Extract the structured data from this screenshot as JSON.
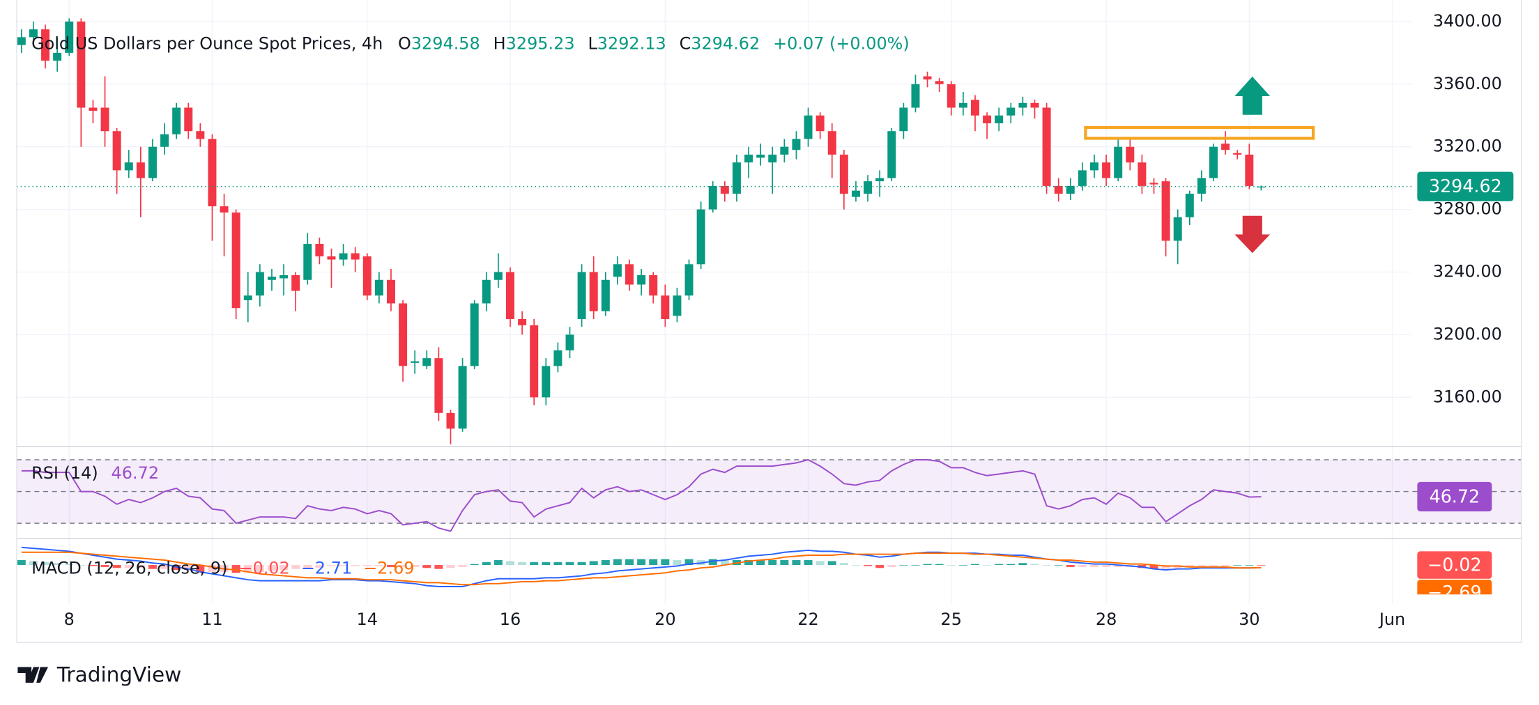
{
  "chart_data": [
    {
      "type": "candlestick",
      "title": "Gold US Dollars per Ounce Spot Prices, 4h",
      "ohlc_labels": [
        "O",
        "H",
        "L",
        "C"
      ],
      "change": "+0.07 (+0.00%)",
      "open": [
        3385,
        3390,
        3395,
        3375,
        3380,
        3400,
        3345,
        3345,
        3330,
        3305,
        3310,
        3300,
        3320,
        3328,
        3345,
        3330,
        3325,
        3282,
        3278,
        3222,
        3225,
        3235,
        3236,
        3238,
        3235,
        3258,
        3250,
        3248,
        3252,
        3250,
        3225,
        3235,
        3220,
        3182,
        3180,
        3185,
        3150,
        3140,
        3180,
        3220,
        3235,
        3240,
        3210,
        3206,
        3160,
        3180,
        3190,
        3210,
        3240,
        3215,
        3237,
        3245,
        3232,
        3238,
        3225,
        3212,
        3225,
        3245,
        3280,
        3295,
        3290,
        3310,
        3313,
        3310,
        3315,
        3318,
        3325,
        3340,
        3330,
        3315,
        3288,
        3290,
        3298,
        3300,
        3330,
        3345,
        3365,
        3362,
        3360,
        3345,
        3350,
        3340,
        3335,
        3340,
        3345,
        3348,
        3345,
        3295,
        3290,
        3295,
        3305,
        3310,
        3300,
        3320,
        3310,
        3297,
        3298,
        3260,
        3275,
        3290,
        3300,
        3322,
        3316,
        3315,
        3294.58
      ],
      "high": [
        3395,
        3400,
        3398,
        3390,
        3402,
        3402,
        3350,
        3365,
        3332,
        3318,
        3320,
        3325,
        3335,
        3348,
        3348,
        3335,
        3328,
        3290,
        3280,
        3240,
        3245,
        3242,
        3245,
        3240,
        3265,
        3262,
        3255,
        3258,
        3256,
        3252,
        3240,
        3242,
        3222,
        3190,
        3190,
        3192,
        3152,
        3185,
        3222,
        3240,
        3252,
        3243,
        3215,
        3210,
        3185,
        3195,
        3205,
        3245,
        3250,
        3240,
        3250,
        3248,
        3242,
        3240,
        3232,
        3230,
        3248,
        3285,
        3298,
        3298,
        3315,
        3320,
        3322,
        3320,
        3325,
        3330,
        3345,
        3342,
        3335,
        3318,
        3298,
        3302,
        3305,
        3332,
        3348,
        3366,
        3368,
        3364,
        3362,
        3355,
        3353,
        3342,
        3345,
        3348,
        3352,
        3350,
        3348,
        3300,
        3300,
        3310,
        3315,
        3315,
        3325,
        3325,
        3315,
        3300,
        3300,
        3280,
        3292,
        3305,
        3322,
        3330,
        3318,
        3322,
        3295.23
      ],
      "low": [
        3380,
        3385,
        3370,
        3368,
        3378,
        3320,
        3335,
        3320,
        3290,
        3300,
        3275,
        3298,
        3315,
        3325,
        3325,
        3320,
        3260,
        3250,
        3210,
        3208,
        3218,
        3228,
        3225,
        3215,
        3232,
        3245,
        3230,
        3244,
        3240,
        3222,
        3220,
        3215,
        3170,
        3175,
        3178,
        3145,
        3130,
        3138,
        3178,
        3215,
        3230,
        3205,
        3200,
        3155,
        3155,
        3176,
        3185,
        3205,
        3210,
        3212,
        3232,
        3228,
        3225,
        3220,
        3205,
        3208,
        3222,
        3242,
        3278,
        3285,
        3285,
        3300,
        3308,
        3290,
        3310,
        3312,
        3320,
        3325,
        3300,
        3280,
        3285,
        3285,
        3288,
        3298,
        3325,
        3342,
        3358,
        3355,
        3340,
        3340,
        3330,
        3325,
        3330,
        3335,
        3340,
        3338,
        3290,
        3285,
        3286,
        3292,
        3300,
        3295,
        3298,
        3305,
        3290,
        3290,
        3250,
        3245,
        3270,
        3285,
        3298,
        3315,
        3312,
        3293,
        3292.13
      ],
      "close": [
        3390,
        3395,
        3375,
        3380,
        3400,
        3345,
        3343,
        3330,
        3305,
        3310,
        3300,
        3320,
        3328,
        3345,
        3330,
        3325,
        3282,
        3278,
        3217,
        3225,
        3240,
        3237,
        3238,
        3228,
        3258,
        3250,
        3248,
        3252,
        3248,
        3225,
        3235,
        3220,
        3180,
        3183,
        3185,
        3150,
        3140,
        3180,
        3220,
        3235,
        3240,
        3210,
        3206,
        3160,
        3180,
        3190,
        3200,
        3240,
        3215,
        3235,
        3245,
        3232,
        3238,
        3225,
        3210,
        3225,
        3245,
        3280,
        3295,
        3290,
        3310,
        3315,
        3315,
        3315,
        3320,
        3325,
        3340,
        3330,
        3315,
        3290,
        3292,
        3298,
        3300,
        3330,
        3345,
        3360,
        3363,
        3360,
        3345,
        3348,
        3340,
        3335,
        3340,
        3345,
        3348,
        3345,
        3295,
        3290,
        3295,
        3305,
        3310,
        3300,
        3320,
        3310,
        3295,
        3296,
        3260,
        3275,
        3290,
        3300,
        3320,
        3318,
        3315,
        3295,
        3294.62
      ],
      "up_color": "#089981",
      "down_color": "#f23645",
      "xlim": [
        -0.4,
        116.6
      ],
      "xticks": [
        {
          "value": 4,
          "label": "8"
        },
        {
          "value": 16,
          "label": "11"
        },
        {
          "value": 29,
          "label": "14"
        },
        {
          "value": 41,
          "label": "16"
        },
        {
          "value": 54,
          "label": "20"
        },
        {
          "value": 66,
          "label": "22"
        },
        {
          "value": 78,
          "label": "25"
        },
        {
          "value": 91,
          "label": "28"
        },
        {
          "value": 103,
          "label": "30"
        },
        {
          "value": 115,
          "label": "Jun"
        }
      ],
      "ylim": [
        3128.7,
        3403.1
      ],
      "yticks": [
        {
          "value": 3160,
          "label": "3160.00"
        },
        {
          "value": 3200,
          "label": "3200.00"
        },
        {
          "value": 3240,
          "label": "3240.00"
        },
        {
          "value": 3280,
          "label": "3280.00"
        },
        {
          "value": 3320,
          "label": "3320.00"
        },
        {
          "value": 3360,
          "label": "3360.00"
        },
        {
          "value": 3400,
          "label": "3400.00"
        }
      ],
      "grid": true
    },
    {
      "type": "line",
      "title": "RSI (14)",
      "color": "#9c4dcc",
      "levels": [
        70,
        50,
        30
      ],
      "ylim": [
        21,
        76.6
      ],
      "values": [
        63,
        63,
        62,
        62,
        62,
        50,
        50,
        47,
        42,
        45,
        43,
        46,
        50,
        52,
        47,
        46,
        39,
        38,
        30,
        32,
        34,
        34,
        34,
        33,
        41,
        39,
        38,
        40,
        39,
        36,
        38,
        36,
        29,
        30,
        31,
        27,
        25,
        38,
        48,
        50,
        51,
        44,
        43,
        34,
        39,
        41,
        43,
        52,
        46,
        51,
        53,
        50,
        51,
        48,
        45,
        48,
        53,
        61,
        64,
        62,
        66,
        66,
        66,
        66,
        67,
        68,
        70,
        66,
        61,
        55,
        54,
        56,
        57,
        63,
        67,
        70,
        70,
        69,
        65,
        65,
        62,
        60,
        61,
        62,
        63,
        61,
        41,
        39,
        41,
        45,
        46,
        42,
        49,
        46,
        40,
        40,
        31,
        36,
        41,
        45,
        51,
        50,
        49,
        46.5,
        46.72
      ]
    },
    {
      "type": "macd",
      "title": "MACD (12, 26, close, 9)",
      "ylim": [
        -39,
        24
      ],
      "histogram": {
        "label": "−0.02",
        "colors": [
          "#26a69a",
          "#b2dfdb",
          "#ffcdd2",
          "#ff5252"
        ],
        "values": [
          5,
          4,
          3,
          2,
          1,
          0,
          -1,
          -2,
          -3,
          -3,
          -3,
          -4,
          -4,
          -5,
          -5,
          -7,
          -7,
          -7,
          -8,
          -8,
          -7,
          -6,
          -5,
          -4,
          -3,
          -3,
          -1,
          -1,
          -1,
          -1,
          -1,
          -2,
          -2,
          -2,
          -3,
          -4,
          -3,
          -2,
          1,
          3,
          5,
          4,
          3,
          3,
          3,
          3,
          3,
          3,
          4,
          5,
          6,
          6,
          6,
          6,
          6,
          5,
          6,
          5,
          6,
          5,
          5,
          5,
          5,
          5,
          5,
          5,
          5,
          4,
          4,
          2,
          0,
          -1,
          -3,
          -2,
          0,
          0,
          1,
          1,
          0,
          0,
          1,
          0,
          1,
          1,
          2,
          1,
          0,
          0,
          -2,
          -2,
          -2,
          -2,
          -2,
          -2,
          -3,
          -4,
          -4,
          -3,
          -2,
          -1,
          -1,
          -1,
          0,
          0,
          -0.02
        ]
      },
      "macd": {
        "label": "−2.71",
        "color": "#2962ff",
        "values": [
          18,
          17,
          16,
          15,
          14,
          12,
          10,
          8,
          6,
          5,
          4,
          2,
          1,
          -2,
          -4,
          -7,
          -9,
          -11,
          -13,
          -15,
          -16,
          -16,
          -16,
          -16,
          -16,
          -16,
          -15,
          -15,
          -15,
          -16,
          -16,
          -17,
          -18,
          -19,
          -21,
          -22,
          -22,
          -22,
          -19,
          -16,
          -14,
          -14,
          -14,
          -14,
          -13,
          -13,
          -12,
          -11,
          -9,
          -8,
          -6,
          -5,
          -4,
          -3,
          -2,
          -1,
          1,
          2,
          4,
          5,
          7,
          9,
          10,
          11,
          13,
          14,
          15,
          14,
          14,
          13,
          11,
          10,
          8,
          9,
          11,
          12,
          13,
          13,
          12,
          12,
          12,
          11,
          11,
          10,
          10,
          8,
          6,
          5,
          3,
          2,
          1,
          1,
          0,
          -1,
          -2,
          -4,
          -5,
          -4,
          -4,
          -3,
          -3,
          -3,
          -3,
          -3,
          -2.71
        ]
      },
      "signal": {
        "label": "−2.69",
        "color": "#ff6d00",
        "values": [
          13,
          13,
          13,
          13,
          13,
          12,
          11,
          10,
          9,
          8,
          7,
          6,
          5,
          3,
          1,
          0,
          -2,
          -4,
          -5,
          -7,
          -9,
          -10,
          -11,
          -12,
          -13,
          -13,
          -14,
          -14,
          -14,
          -15,
          -15,
          -15,
          -16,
          -17,
          -18,
          -18,
          -19,
          -20,
          -20,
          -19,
          -19,
          -18,
          -17,
          -17,
          -16,
          -16,
          -15,
          -14,
          -13,
          -13,
          -12,
          -11,
          -10,
          -9,
          -8,
          -6,
          -5,
          -3,
          -2,
          0,
          2,
          4,
          5,
          6,
          8,
          9,
          10,
          10,
          10,
          11,
          11,
          11,
          11,
          11,
          11,
          12,
          12,
          12,
          12,
          12,
          11,
          11,
          10,
          9,
          8,
          7,
          6,
          5,
          5,
          4,
          3,
          3,
          2,
          1,
          1,
          0,
          -1,
          -1,
          -2,
          -2,
          -2,
          -2,
          -3,
          -3,
          -2.69
        ]
      }
    }
  ],
  "branding": "TradingView"
}
